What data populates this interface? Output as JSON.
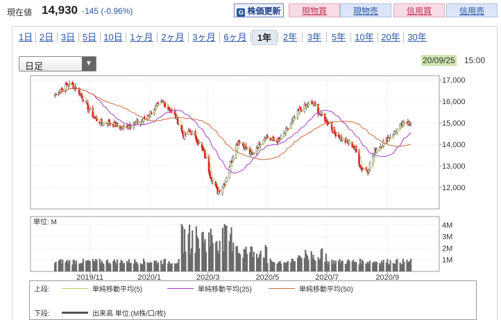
{
  "header": {
    "price_label": "現在値",
    "price_value": "14,930",
    "price_change": "-145 (-0.96%)",
    "buttons": {
      "update": "株価更新",
      "spot_buy": "現物買",
      "spot_sell": "現物売",
      "margin_buy": "信用買",
      "margin_sell": "信用売"
    }
  },
  "period_tabs": [
    "1日",
    "2日",
    "3日",
    "5日",
    "10日",
    "1ヶ月",
    "2ヶ月",
    "3ヶ月",
    "6ヶ月",
    "1年",
    "2年",
    "3年",
    "5年",
    "10年",
    "20年",
    "30年"
  ],
  "active_tab": "1年",
  "interval_select": "日足",
  "chart_date": "20/09/25",
  "chart_time": "15:00",
  "chart_data": {
    "type": "candlestick",
    "price_axis": {
      "ticks": [
        "17,000",
        "16,000",
        "15,000",
        "14,000",
        "13,000",
        "12,000"
      ],
      "range": [
        11000,
        17200
      ]
    },
    "volume_axis": {
      "label": "単位: M",
      "ticks": [
        "4M",
        "3M",
        "2M",
        "1M"
      ],
      "range": [
        0,
        4.7
      ]
    },
    "x_ticks": [
      "2019/11",
      "2020/1",
      "2020/3",
      "2020/5",
      "2020/7",
      "2020/9"
    ],
    "x_axis_range": [
      "2019/9/26",
      "2020/9/25"
    ],
    "close_points": [
      [
        "2019/9/26",
        16300
      ],
      [
        "2019/10/2",
        16550
      ],
      [
        "2019/10/9",
        16800
      ],
      [
        "2019/10/16",
        16700
      ],
      [
        "2019/10/23",
        16300
      ],
      [
        "2019/10/30",
        15700
      ],
      [
        "2019/11/6",
        15200
      ],
      [
        "2019/11/13",
        15000
      ],
      [
        "2019/11/20",
        15050
      ],
      [
        "2019/11/27",
        14900
      ],
      [
        "2019/12/4",
        14750
      ],
      [
        "2019/12/11",
        14900
      ],
      [
        "2019/12/18",
        15000
      ],
      [
        "2019/12/25",
        15100
      ],
      [
        "2020/1/8",
        15750
      ],
      [
        "2020/1/15",
        15950
      ],
      [
        "2020/1/22",
        15650
      ],
      [
        "2020/1/29",
        15200
      ],
      [
        "2020/2/5",
        14400
      ],
      [
        "2020/2/12",
        14600
      ],
      [
        "2020/2/19",
        14200
      ],
      [
        "2020/2/26",
        13600
      ],
      [
        "2020/3/4",
        12500
      ],
      [
        "2020/3/11",
        11800
      ],
      [
        "2020/3/18",
        12200
      ],
      [
        "2020/3/25",
        13300
      ],
      [
        "2020/4/1",
        14200
      ],
      [
        "2020/4/8",
        13900
      ],
      [
        "2020/4/15",
        13500
      ],
      [
        "2020/4/22",
        14000
      ],
      [
        "2020/4/29",
        14400
      ],
      [
        "2020/5/6",
        14200
      ],
      [
        "2020/5/13",
        14200
      ],
      [
        "2020/5/20",
        14600
      ],
      [
        "2020/5/27",
        15100
      ],
      [
        "2020/6/3",
        15600
      ],
      [
        "2020/6/10",
        15800
      ],
      [
        "2020/6/17",
        15900
      ],
      [
        "2020/6/24",
        15400
      ],
      [
        "2020/7/1",
        15100
      ],
      [
        "2020/7/8",
        14600
      ],
      [
        "2020/7/15",
        14300
      ],
      [
        "2020/7/22",
        14100
      ],
      [
        "2020/7/29",
        13900
      ],
      [
        "2020/8/5",
        12900
      ],
      [
        "2020/8/12",
        12800
      ],
      [
        "2020/8/19",
        13700
      ],
      [
        "2020/8/26",
        14000
      ],
      [
        "2020/9/2",
        14300
      ],
      [
        "2020/9/9",
        14600
      ],
      [
        "2020/9/16",
        14900
      ],
      [
        "2020/9/23",
        15100
      ],
      [
        "2020/9/25",
        14930
      ]
    ],
    "series": [
      {
        "name": "単純移動平均(5)",
        "color": "#b9c95a"
      },
      {
        "name": "単純移動平均(25)",
        "color": "#a23cc7"
      },
      {
        "name": "単純移動平均(50)",
        "color": "#d0643a"
      }
    ],
    "volume_series_name": "出来高 単位:(M株/口/枚)"
  },
  "legend": {
    "upper_label": "上段:",
    "lower_label": "下段:",
    "ma5": "単純移動平均(5)",
    "ma25": "単純移動平均(25)",
    "ma50": "単純移動平均(50)",
    "volume": "出来高 単位:(M株/口/枚)"
  },
  "colors": {
    "up": "#6d6d6d",
    "down": "#d9202a",
    "volume": "#6b6b6b",
    "accent": "#2b56a8"
  }
}
